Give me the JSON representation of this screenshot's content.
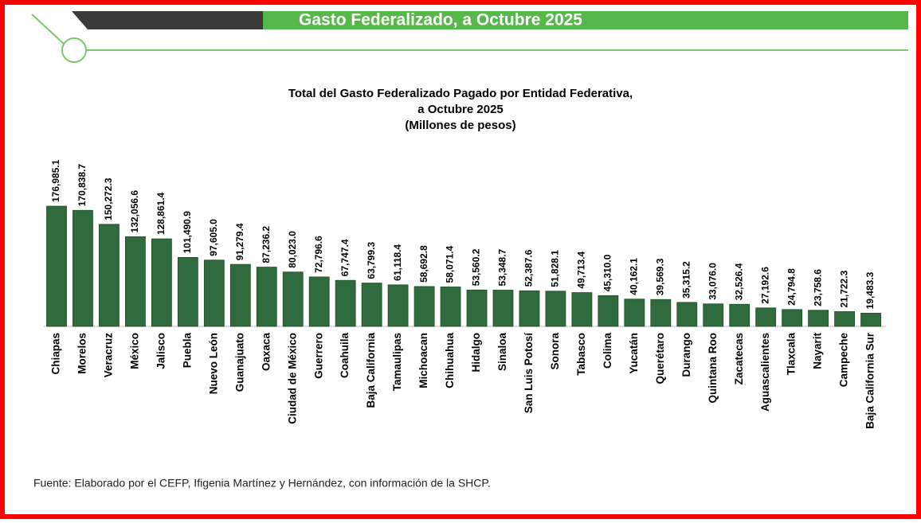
{
  "header": {
    "title": "Gasto Federalizado, a Octubre 2025"
  },
  "chart_data": {
    "type": "bar",
    "title": [
      "Total del Gasto Federalizado Pagado por Entidad Federativa,",
      "a Octubre 2025",
      "(Millones de pesos)"
    ],
    "categories": [
      "Chiapas",
      "Morelos",
      "Veracruz",
      "México",
      "Jalisco",
      "Puebla",
      "Nuevo León",
      "Guanajuato",
      "Oaxaca",
      "Ciudad de México",
      "Guerrero",
      "Coahuila",
      "Baja California",
      "Tamaulipas",
      "Michoacan",
      "Chihuahua",
      "Hidalgo",
      "Sinaloa",
      "San Luis Potosí",
      "Sonora",
      "Tabasco",
      "Colima",
      "Yucatán",
      "Querétaro",
      "Durango",
      "Quintana Roo",
      "Zacatecas",
      "Aguascalientes",
      "Tlaxcala",
      "Nayarit",
      "Campeche",
      "Baja California Sur"
    ],
    "values": [
      176985.1,
      170838.7,
      150272.3,
      132056.6,
      128861.4,
      101490.9,
      97605.0,
      91279.4,
      87236.2,
      80023.0,
      72796.6,
      67747.4,
      63799.3,
      61118.4,
      58692.8,
      58071.4,
      53560.2,
      53348.7,
      52387.6,
      51828.1,
      49713.4,
      45310.0,
      40162.1,
      39569.3,
      35315.2,
      33076.0,
      32526.4,
      27192.6,
      24794.8,
      23758.6,
      21722.3,
      19483.3
    ],
    "value_labels": [
      "176,985.1",
      "170,838.7",
      "150,272.3",
      "132,056.6",
      "128,861.4",
      "101,490.9",
      "97,605.0",
      "91,279.4",
      "87,236.2",
      "80,023.0",
      "72,796.6",
      "67,747.4",
      "63,799.3",
      "61,118.4",
      "58,692.8",
      "58,071.4",
      "53,560.2",
      "53,348.7",
      "52,387.6",
      "51,828.1",
      "49,713.4",
      "45,310.0",
      "40,162.1",
      "39,569.3",
      "35,315.2",
      "33,076.0",
      "32,526.4",
      "27,192.6",
      "24,794.8",
      "23,758.6",
      "21,722.3",
      "19,483.3"
    ],
    "color": "#2f6b3c"
  },
  "source": "Fuente: Elaborado por el CEFP, Ifigenia Martínez y Hernández, con información de la SHCP."
}
